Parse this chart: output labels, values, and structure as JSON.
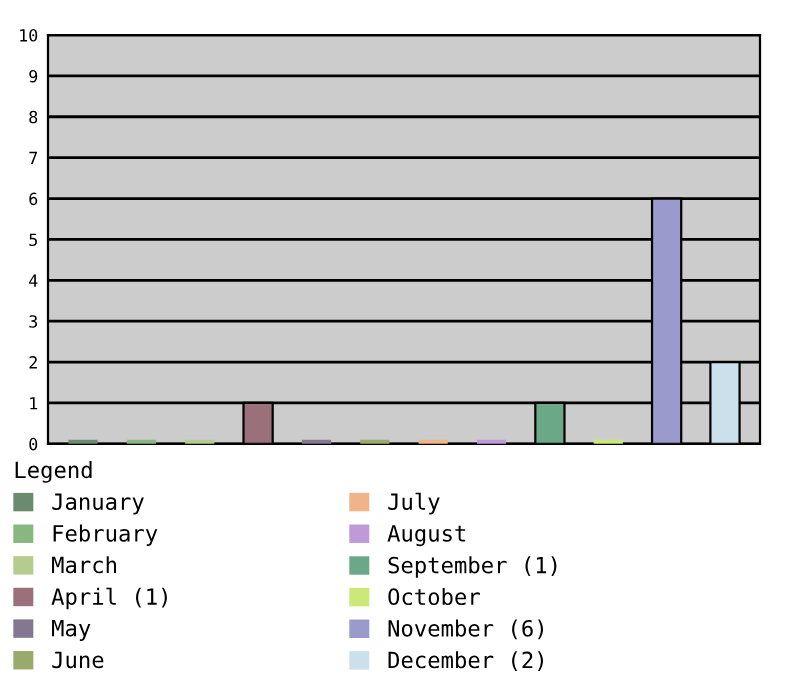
{
  "chart_data": {
    "type": "bar",
    "categories": [
      null,
      null,
      null,
      null,
      null,
      null,
      null,
      null,
      null,
      null,
      null,
      null
    ],
    "series": [
      {
        "name": "January",
        "color": "#6b8a70",
        "values": [
          0,
          null,
          null,
          null,
          null,
          null,
          null,
          null,
          null,
          null,
          null,
          null
        ]
      },
      {
        "name": "February",
        "color": "#88b880",
        "values": [
          null,
          0,
          null,
          null,
          null,
          null,
          null,
          null,
          null,
          null,
          null,
          null
        ]
      },
      {
        "name": "March",
        "color": "#b5cc8e",
        "values": [
          null,
          null,
          0,
          null,
          null,
          null,
          null,
          null,
          null,
          null,
          null,
          null
        ]
      },
      {
        "name": "April (1)",
        "color": "#9a707a",
        "values": [
          null,
          null,
          null,
          1,
          null,
          null,
          null,
          null,
          null,
          null,
          null,
          null
        ]
      },
      {
        "name": "May",
        "color": "#847890",
        "values": [
          null,
          null,
          null,
          null,
          0,
          null,
          null,
          null,
          null,
          null,
          null,
          null
        ]
      },
      {
        "name": "June",
        "color": "#9aaa6a",
        "values": [
          null,
          null,
          null,
          null,
          null,
          0,
          null,
          null,
          null,
          null,
          null,
          null
        ]
      },
      {
        "name": "July",
        "color": "#f0b48a",
        "values": [
          null,
          null,
          null,
          null,
          null,
          null,
          0,
          null,
          null,
          null,
          null,
          null
        ]
      },
      {
        "name": "August",
        "color": "#c09ad8",
        "values": [
          null,
          null,
          null,
          null,
          null,
          null,
          null,
          0,
          null,
          null,
          null,
          null
        ]
      },
      {
        "name": "September (1)",
        "color": "#6aa888",
        "values": [
          null,
          null,
          null,
          null,
          null,
          null,
          null,
          null,
          1,
          null,
          null,
          null
        ]
      },
      {
        "name": "October",
        "color": "#cce878",
        "values": [
          null,
          null,
          null,
          null,
          null,
          null,
          null,
          null,
          null,
          0,
          null,
          null
        ]
      },
      {
        "name": "November (6)",
        "color": "#9a9acc",
        "values": [
          null,
          null,
          null,
          null,
          null,
          null,
          null,
          null,
          null,
          null,
          6,
          null
        ]
      },
      {
        "name": "December (2)",
        "color": "#cce0ec",
        "values": [
          null,
          null,
          null,
          null,
          null,
          null,
          null,
          null,
          null,
          null,
          null,
          2
        ]
      }
    ],
    "ylim": [
      0,
      10
    ],
    "yticks": [
      0,
      1,
      2,
      3,
      4,
      5,
      6,
      7,
      8,
      9,
      10
    ],
    "grid": "y",
    "legend": "bottom",
    "legend_title": "Legend",
    "tick_labels": "y"
  }
}
